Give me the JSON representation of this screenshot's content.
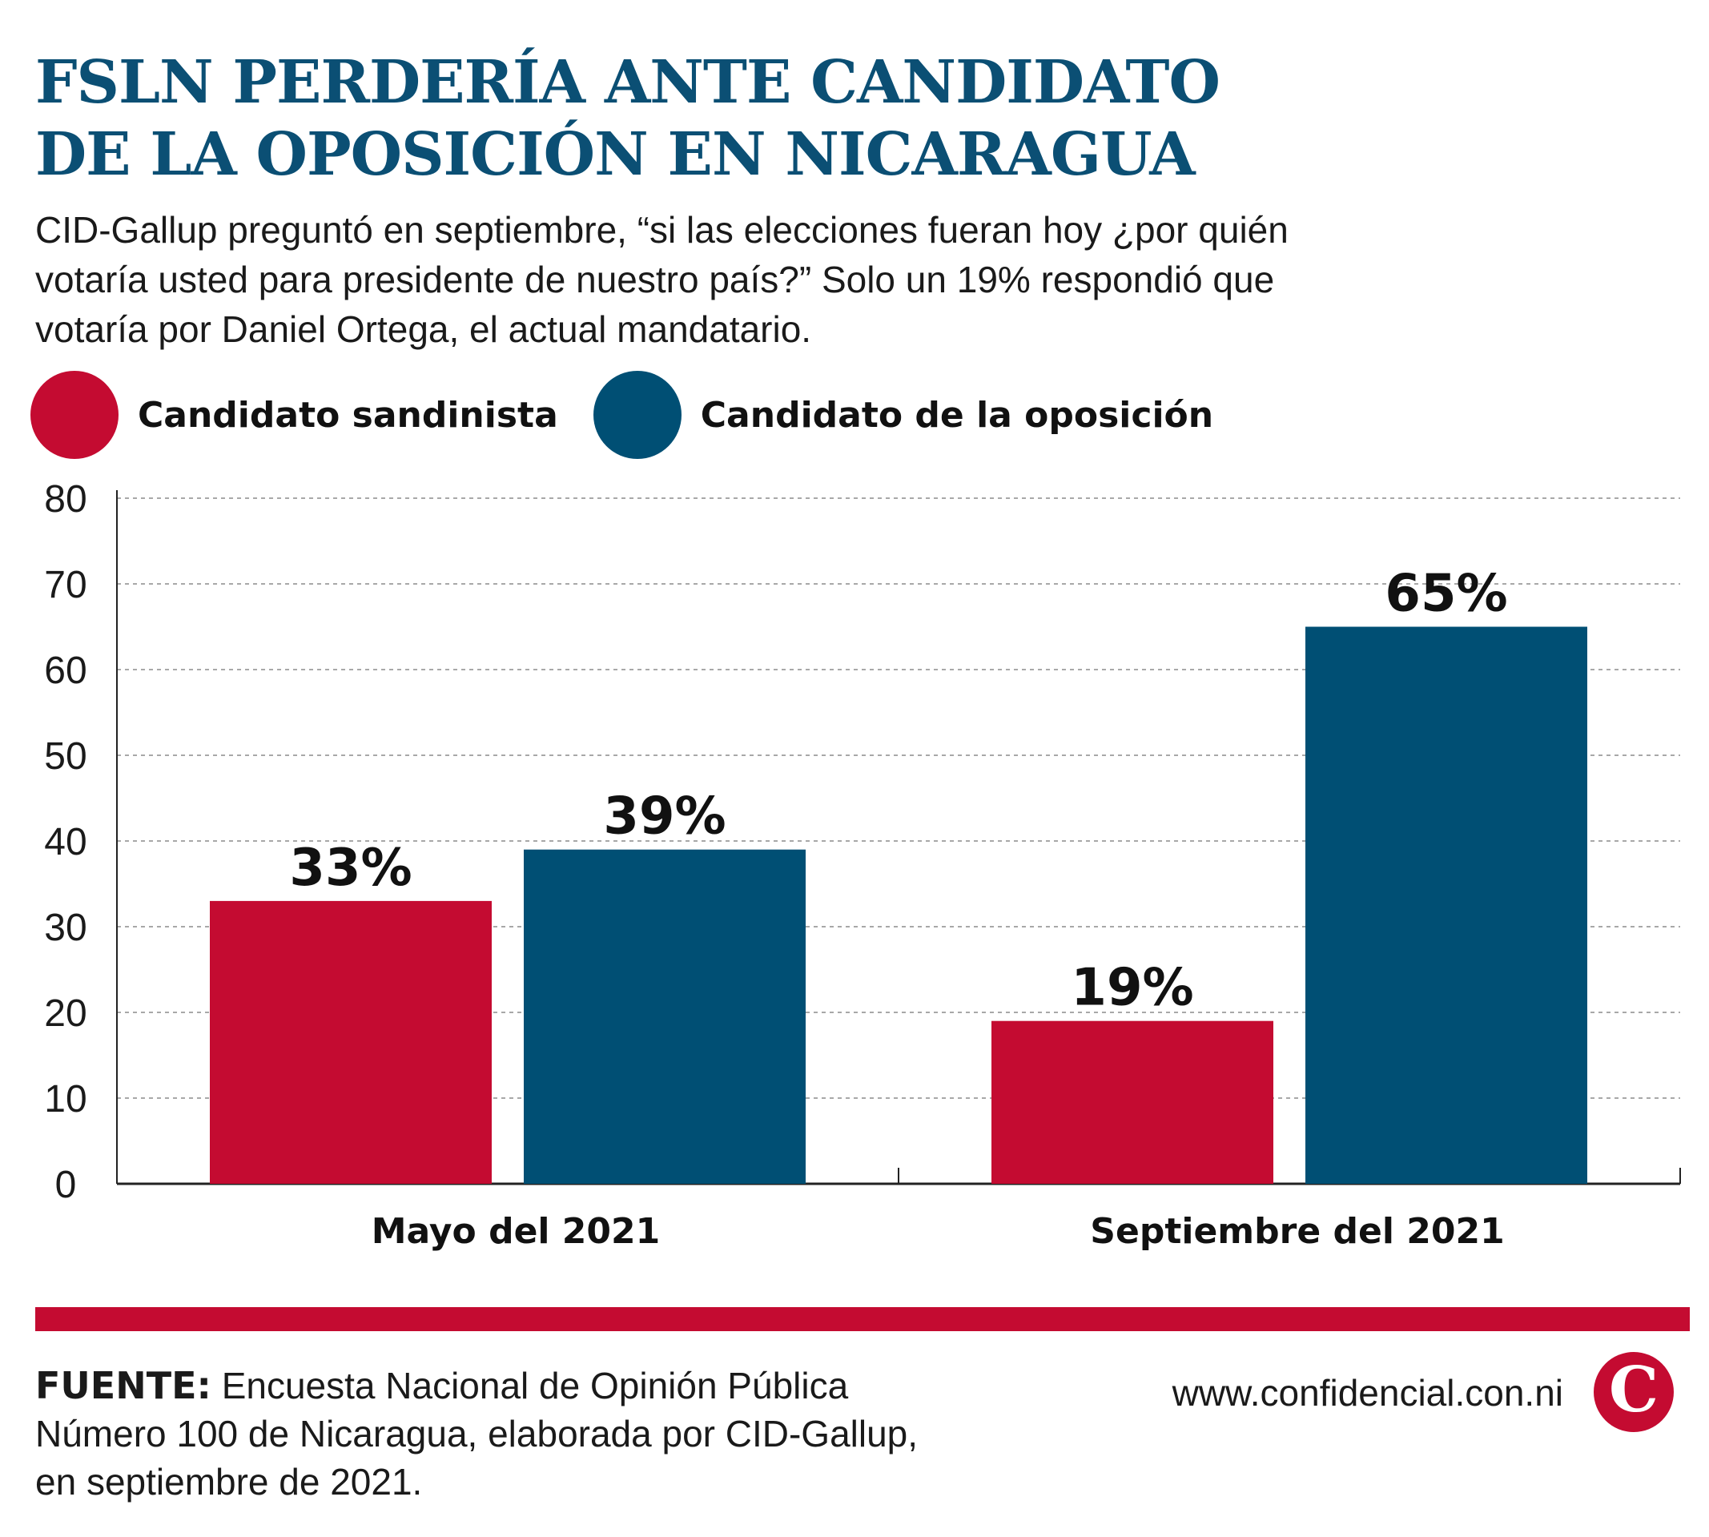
{
  "header": {
    "title_lines": [
      "FSLN PERDERÍA ANTE CANDIDATO",
      "DE LA OPOSICIÓN EN NICARAGUA"
    ],
    "subtitle_lines": [
      "CID-Gallup preguntó en septiembre, “si las elecciones fueran hoy ¿por quién",
      "votaría usted para presidente de nuestro país?” Solo un 19% respondió que",
      "votaría por Daniel Ortega, el actual mandatario."
    ]
  },
  "legend": {
    "items": [
      {
        "label": "Candidato sandinista",
        "color": "#c40b31"
      },
      {
        "label": "Candidato de la oposición",
        "color": "#004f74"
      }
    ]
  },
  "chart_data": {
    "type": "bar",
    "title": "FSLN PERDERÍA ANTE CANDIDATO DE LA OPOSICIÓN EN NICARAGUA",
    "xlabel": "",
    "ylabel": "",
    "categories": [
      "Mayo del 2021",
      "Septiembre del 2021"
    ],
    "series": [
      {
        "name": "Candidato sandinista",
        "values": [
          33,
          19
        ],
        "labels": [
          "33%",
          "19%"
        ],
        "color": "#c40b31"
      },
      {
        "name": "Candidato de la oposición",
        "values": [
          39,
          65
        ],
        "labels": [
          "39%",
          "65%"
        ],
        "color": "#004f74"
      }
    ],
    "ylim": [
      0,
      80
    ],
    "yticks": [
      0,
      10,
      20,
      30,
      40,
      50,
      60,
      70,
      80
    ],
    "grid": true,
    "legend_position": "top-left"
  },
  "footer": {
    "source_label": "FUENTE:",
    "source_lines": [
      "Encuesta Nacional de Opinión Pública",
      "Número 100 de Nicaragua, elaborada por CID-Gallup,",
      "en septiembre de 2021."
    ],
    "website": "www.confidencial.con.ni",
    "logo_letter": "C",
    "accent_color": "#c40b31"
  }
}
